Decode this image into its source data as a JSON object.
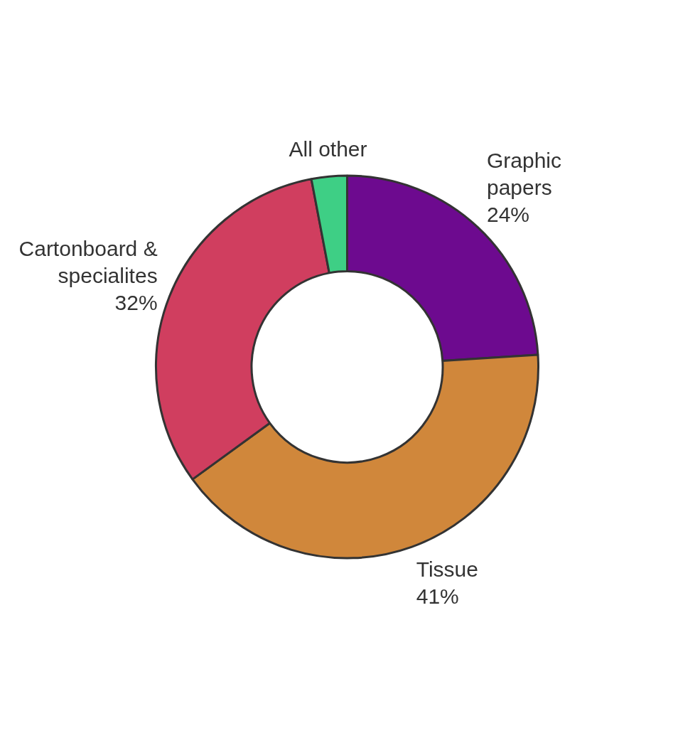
{
  "chart_data": {
    "type": "donut",
    "categories": [
      "Graphic papers",
      "Tissue",
      "Cartonboard & specialites",
      "All other"
    ],
    "values": [
      24,
      41,
      32,
      3
    ],
    "colors": [
      "#6d0a8f",
      "#d0873b",
      "#d03e5f",
      "#3ecf85"
    ],
    "value_labels": [
      "24%",
      "41%",
      "32%",
      null
    ],
    "legend": false
  }
}
